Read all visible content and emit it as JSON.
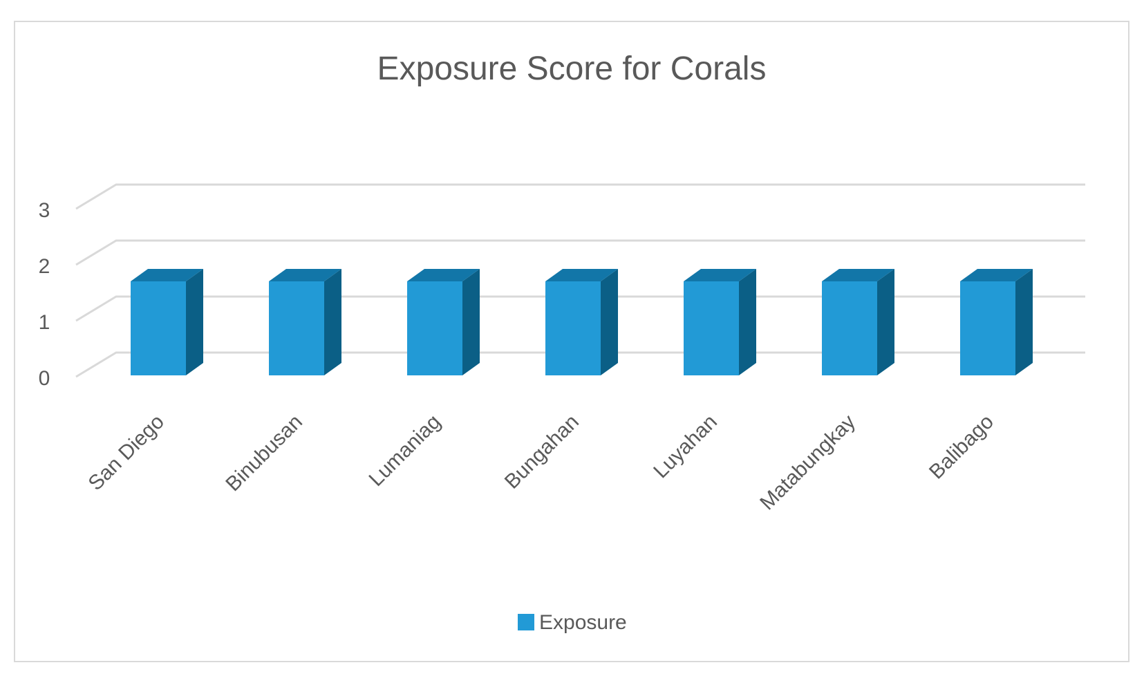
{
  "chart_data": {
    "type": "bar",
    "title": "Exposure Score for Corals",
    "categories": [
      "San Diego",
      "Binubusan",
      "Lumaniag",
      "Bungahan",
      "Luyahan",
      "Matabungkay",
      "Balibago"
    ],
    "series": [
      {
        "name": "Exposure",
        "values": [
          2,
          2,
          2,
          2,
          2,
          2,
          2
        ]
      }
    ],
    "y_ticks": [
      "0",
      "1",
      "2",
      "3"
    ],
    "ylim": [
      0,
      3
    ],
    "grid": true,
    "style_3d": true,
    "legend_position": "bottom",
    "colors": {
      "bar_front": "#229ad6",
      "bar_top": "#1276a8",
      "bar_side": "#0b5f86",
      "grid": "#d9d9d9",
      "text": "#595959",
      "title": "#595959"
    }
  }
}
